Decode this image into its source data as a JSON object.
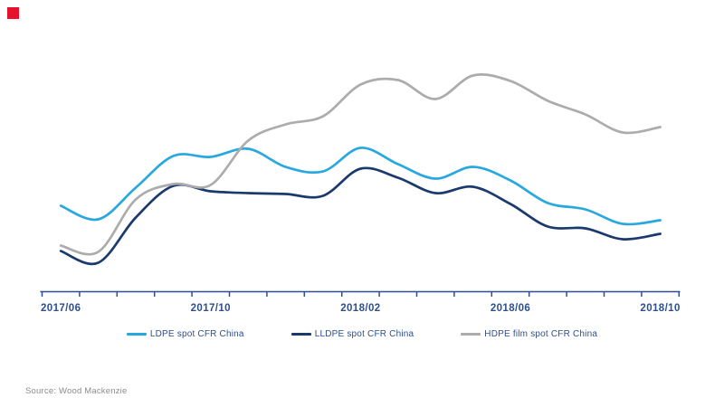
{
  "brand": {
    "logo_color": "#e8112d"
  },
  "source": {
    "text": "Source: Wood Mackenzie"
  },
  "chart_data": {
    "type": "line",
    "title": "",
    "xlabel": "",
    "ylabel": "",
    "y_axis_shown": false,
    "y_unit": "relative level (no y-axis scale shown in image; values are px above baseline)",
    "grid": false,
    "legend_position": "bottom",
    "axis_color": "#2d4f8e",
    "label_color": "#2d4f8e",
    "x_tick_labels": [
      "2017/06",
      "2017/10",
      "2018/02",
      "2018/06",
      "2018/10"
    ],
    "categories": [
      "2017/06",
      "2017/07",
      "2017/08",
      "2017/09",
      "2017/10",
      "2017/11",
      "2017/12",
      "2018/01",
      "2018/02",
      "2018/03",
      "2018/04",
      "2018/05",
      "2018/06",
      "2018/07",
      "2018/08",
      "2018/09",
      "2018/10"
    ],
    "series": [
      {
        "name": "LDPE spot CFR China",
        "color": "#29a8e0",
        "values": [
          95,
          80,
          115,
          150,
          149,
          158,
          138,
          133,
          159,
          141,
          125,
          138,
          123,
          98,
          91,
          75,
          79
        ]
      },
      {
        "name": "LLDPE spot CFR China",
        "color": "#1a3a6e",
        "values": [
          45,
          32,
          82,
          117,
          111,
          109,
          108,
          106,
          136,
          126,
          109,
          116,
          97,
          72,
          70,
          58,
          64
        ]
      },
      {
        "name": "HDPE film spot CFR China",
        "color": "#acacac",
        "values": [
          51,
          44,
          102,
          119,
          118,
          167,
          185,
          194,
          229,
          234,
          213,
          239,
          233,
          211,
          196,
          176,
          182
        ]
      }
    ]
  }
}
